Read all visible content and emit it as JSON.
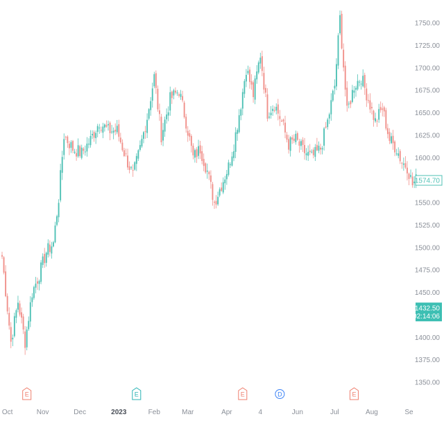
{
  "colors": {
    "up": "#26a69a",
    "down": "#ef5350",
    "up_fill": "#4fc1b5",
    "down_fill": "#f0908a",
    "earnings": "#ef7f6e",
    "dividend": "#3b82f6",
    "split": "#2bb3b5",
    "axis_text": "#8a8f98",
    "last_price_bg": "#3dbfb3"
  },
  "chart_data": {
    "type": "candlestick",
    "title": "",
    "xlabel": "",
    "ylabel": "",
    "ylim": [
      1337,
      1762
    ],
    "y_ticks": [
      "1750.00",
      "1725.00",
      "1700.00",
      "1675.00",
      "1650.00",
      "1625.00",
      "1600.00",
      "1575.00",
      "1550.00",
      "1525.00",
      "1500.00",
      "1475.00",
      "1450.00",
      "1425.00",
      "1400.00",
      "1375.00",
      "1350.00"
    ],
    "x_ticks": [
      {
        "label": "Oct",
        "index": 3
      },
      {
        "label": "Nov",
        "index": 23
      },
      {
        "label": "Dec",
        "index": 44
      },
      {
        "label": "2023",
        "index": 66,
        "bold": true
      },
      {
        "label": "Feb",
        "index": 86
      },
      {
        "label": "Mar",
        "index": 105
      },
      {
        "label": "Apr",
        "index": 127
      },
      {
        "label": "4",
        "index": 146
      },
      {
        "label": "Jun",
        "index": 167
      },
      {
        "label": "Jul",
        "index": 188
      },
      {
        "label": "Aug",
        "index": 209
      },
      {
        "label": "Se",
        "index": 230
      }
    ],
    "event_markers": [
      {
        "type": "earnings",
        "label": "E",
        "index": 14
      },
      {
        "type": "split",
        "label": "E",
        "index": 76
      },
      {
        "type": "earnings",
        "label": "E",
        "index": 136
      },
      {
        "type": "dividend",
        "label": "D",
        "index": 157
      },
      {
        "type": "earnings",
        "label": "E",
        "index": 199
      }
    ],
    "price_labels": [
      {
        "label": "1574.70",
        "value": 1574.7,
        "style": "outline"
      },
      {
        "label": "1432.50",
        "sublabel": "02:14:06",
        "value": 1432.5,
        "style": "filled"
      }
    ],
    "keypoints": [
      [
        0,
        1490
      ],
      [
        5,
        1395
      ],
      [
        9,
        1440
      ],
      [
        13,
        1395
      ],
      [
        17,
        1450
      ],
      [
        21,
        1470
      ],
      [
        25,
        1495
      ],
      [
        29,
        1505
      ],
      [
        32,
        1555
      ],
      [
        35,
        1625
      ],
      [
        40,
        1610
      ],
      [
        45,
        1605
      ],
      [
        50,
        1620
      ],
      [
        55,
        1640
      ],
      [
        60,
        1630
      ],
      [
        65,
        1630
      ],
      [
        70,
        1600
      ],
      [
        74,
        1580
      ],
      [
        78,
        1610
      ],
      [
        82,
        1645
      ],
      [
        86,
        1690
      ],
      [
        90,
        1625
      ],
      [
        95,
        1665
      ],
      [
        100,
        1675
      ],
      [
        104,
        1640
      ],
      [
        108,
        1600
      ],
      [
        112,
        1610
      ],
      [
        116,
        1585
      ],
      [
        120,
        1550
      ],
      [
        124,
        1570
      ],
      [
        128,
        1590
      ],
      [
        131,
        1615
      ],
      [
        135,
        1660
      ],
      [
        138,
        1700
      ],
      [
        142,
        1670
      ],
      [
        146,
        1715
      ],
      [
        150,
        1650
      ],
      [
        154,
        1660
      ],
      [
        158,
        1640
      ],
      [
        162,
        1615
      ],
      [
        166,
        1620
      ],
      [
        170,
        1608
      ],
      [
        175,
        1600
      ],
      [
        180,
        1610
      ],
      [
        184,
        1640
      ],
      [
        188,
        1680
      ],
      [
        191,
        1755
      ],
      [
        195,
        1650
      ],
      [
        199,
        1680
      ],
      [
        203,
        1690
      ],
      [
        207,
        1665
      ],
      [
        211,
        1640
      ],
      [
        215,
        1655
      ],
      [
        219,
        1620
      ],
      [
        223,
        1610
      ],
      [
        226,
        1595
      ],
      [
        229,
        1590
      ],
      [
        232,
        1570
      ],
      [
        234,
        1575
      ]
    ]
  }
}
